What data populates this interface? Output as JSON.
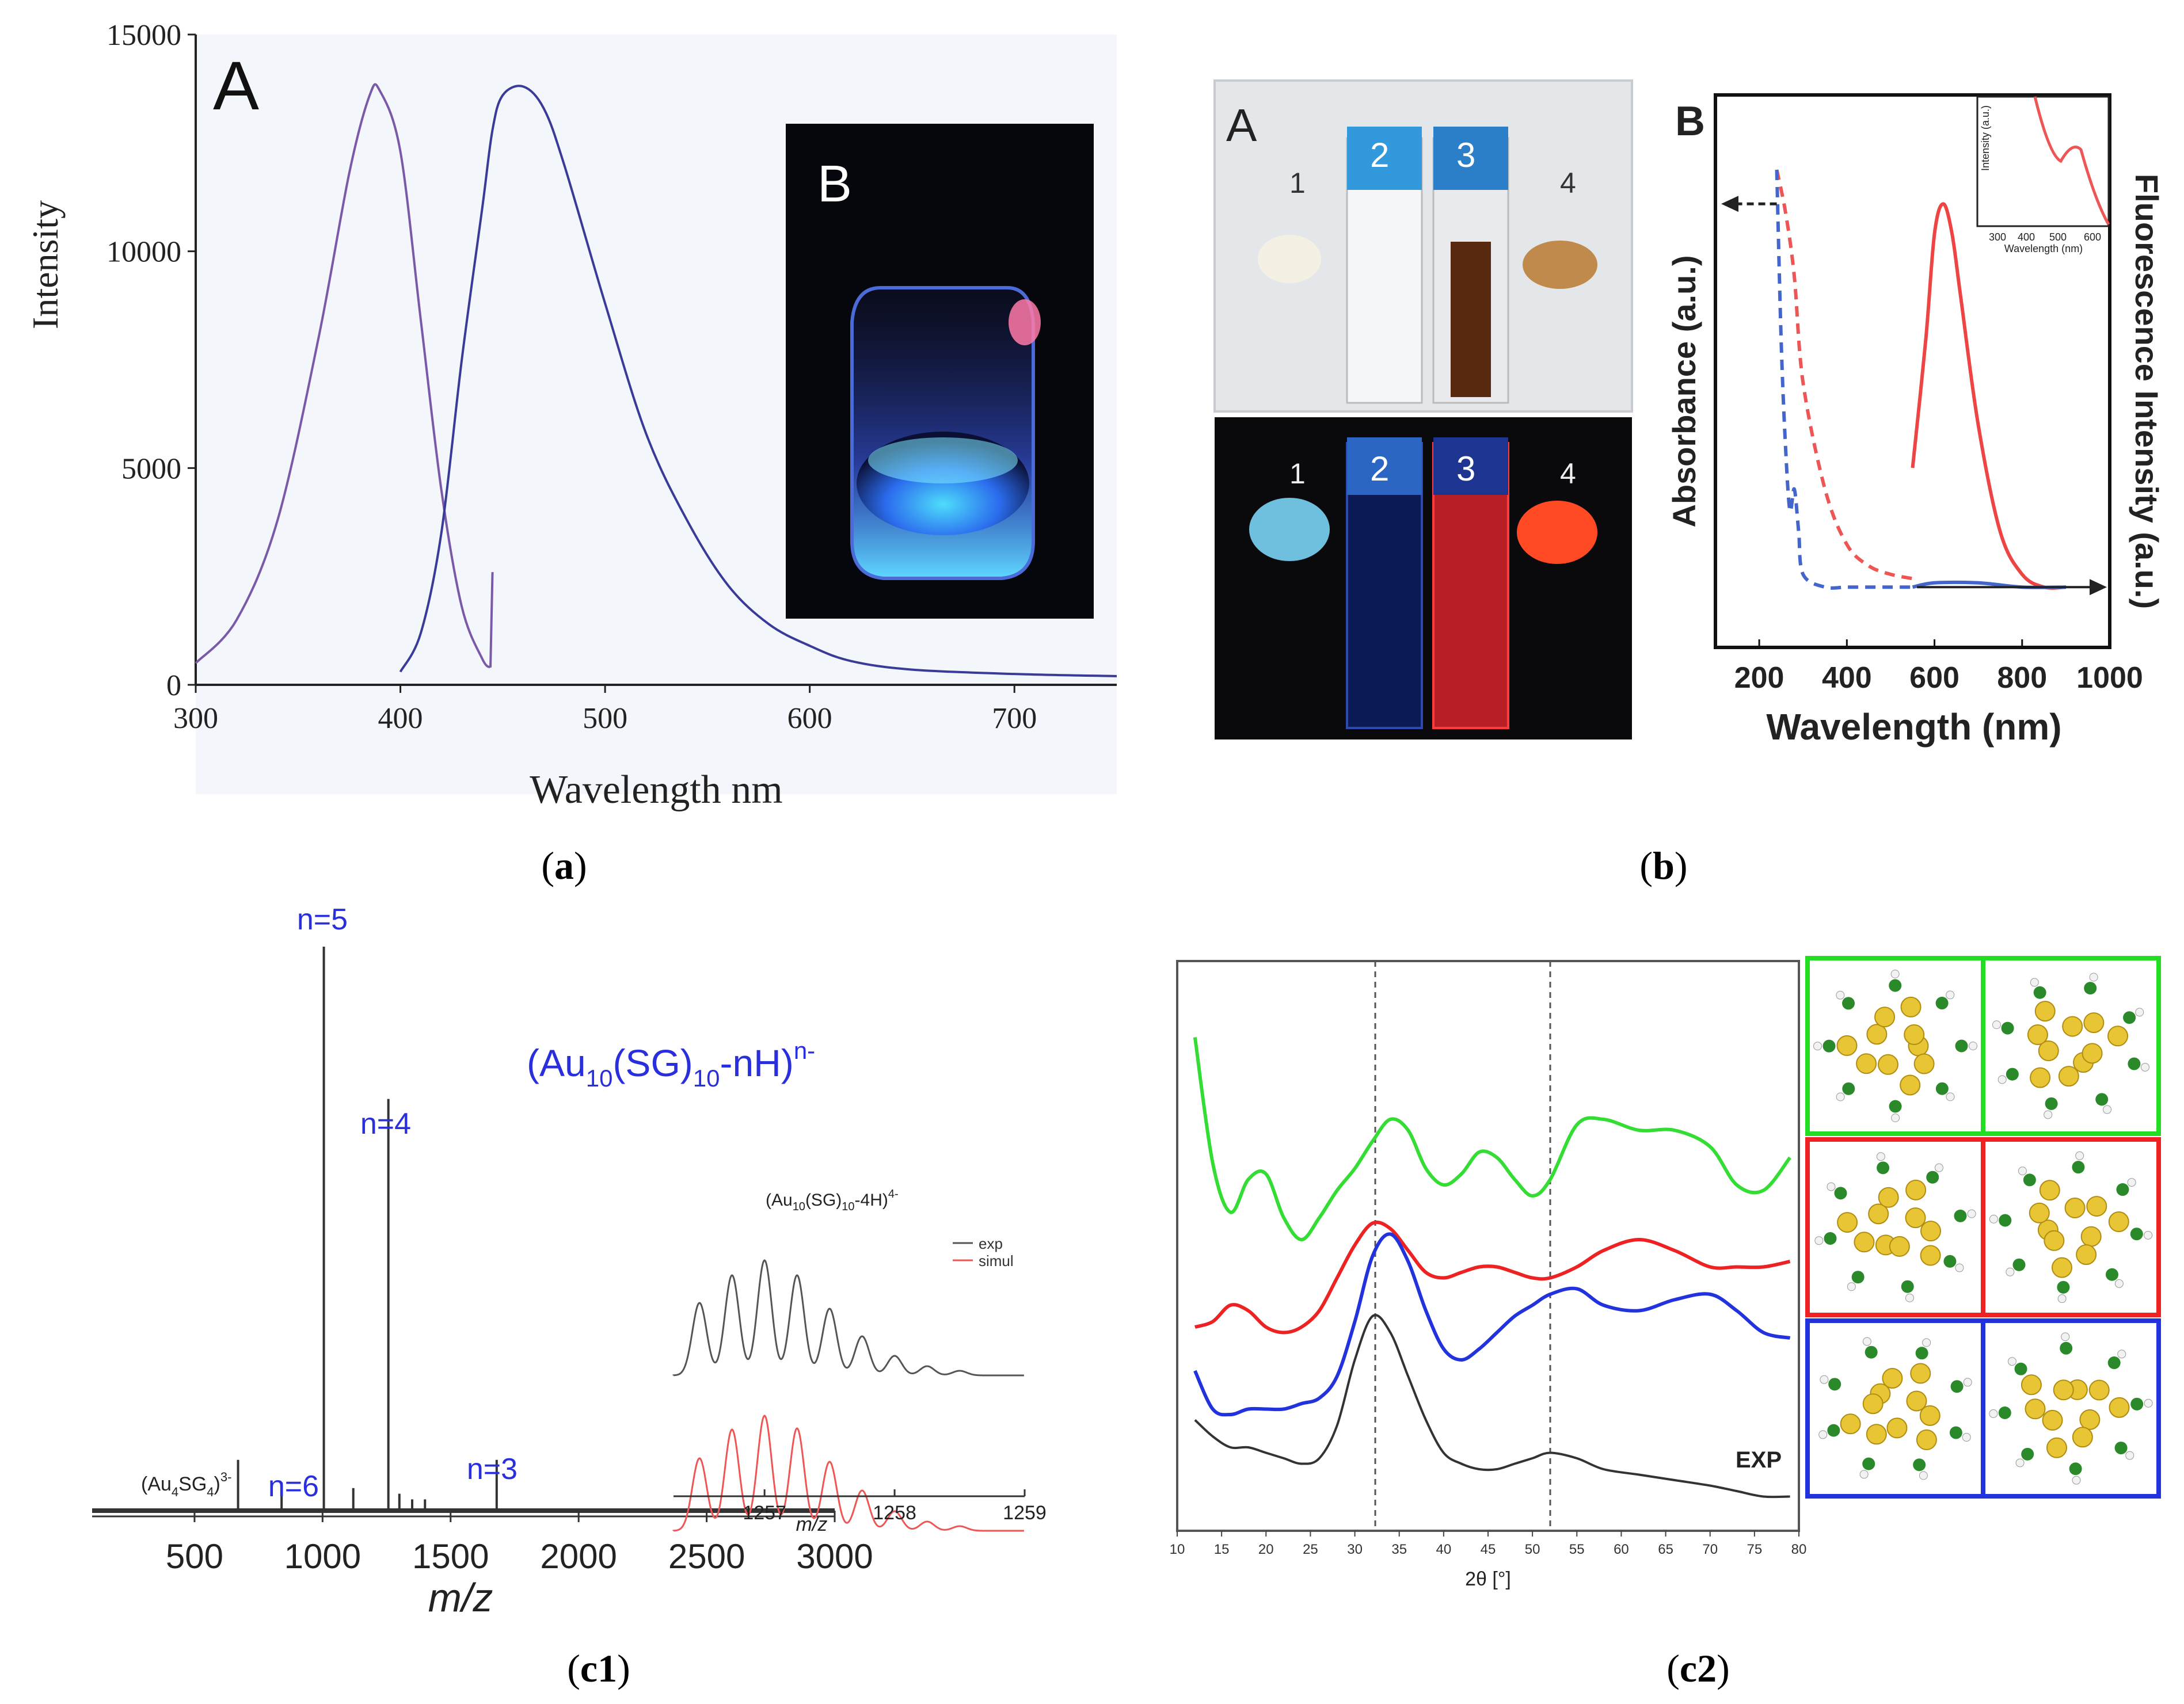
{
  "captions": {
    "a": {
      "open": "(",
      "tag": "a",
      "close": ")"
    },
    "b": {
      "open": "(",
      "tag": "b",
      "close": ")"
    },
    "c1": {
      "open": "(",
      "tag": "c1",
      "close": ")"
    },
    "c2": {
      "open": "(",
      "tag": "c2",
      "close": ")"
    }
  },
  "panel_a": {
    "panel_label": "A",
    "inset_label": "B",
    "xlabel": "Wavelength nm",
    "ylabel": "Intensity"
  },
  "panel_b": {
    "photo_label": "A",
    "vial_labels": [
      "1",
      "2",
      "3",
      "4"
    ],
    "chart_label": "B",
    "xlabel": "Wavelength (nm)",
    "ylabel_left": "Absorbance (a.u.)",
    "ylabel_right": "Fluorescence Intensity (a.u.)",
    "inset_ylabel": "Intensity (a.u.)",
    "inset_xlabel": "Wavelength (nm)",
    "inset_ticks": [
      "300",
      "400",
      "500",
      "600"
    ]
  },
  "panel_c1": {
    "formula": {
      "pre": "(Au",
      "sub1": "10",
      "mid": "(SG)",
      "sub2": "10",
      "post": "-nH)",
      "sup": "n-"
    },
    "peak_labels": [
      "n=5",
      "n=4",
      "n=6",
      "n=3"
    ],
    "fragment": {
      "pre": "(Au",
      "sub1": "4",
      "mid": "SG",
      "sub2": "4",
      "post": ")",
      "sup": "3-"
    },
    "inset_title": {
      "pre": "(Au",
      "sub1": "10",
      "mid": "(SG)",
      "sub2": "10",
      "post": "-4H)",
      "sup": "4-"
    },
    "legend": [
      "exp",
      "simul"
    ],
    "inset_xlabel": "m/z",
    "xlabel": "m/z"
  },
  "panel_c2": {
    "xlabel": "2θ [°]",
    "exp_label": "EXP",
    "structure_frames": [
      "#22dd22",
      "#ee2222",
      "#2233dd"
    ]
  },
  "chart_data": [
    {
      "type": "line",
      "title": "",
      "xlabel": "Wavelength nm",
      "ylabel": "Intensity",
      "xlim": [
        300,
        750
      ],
      "ylim": [
        0,
        15000
      ],
      "xticks": [
        300,
        400,
        500,
        600,
        700
      ],
      "yticks": [
        0,
        5000,
        10000,
        15000
      ],
      "series": [
        {
          "name": "excitation",
          "color": "#7a5aa8",
          "x": [
            300,
            320,
            340,
            360,
            375,
            385,
            390,
            400,
            410,
            420,
            430,
            440,
            444
          ],
          "y": [
            500,
            1500,
            3800,
            8000,
            11800,
            13600,
            13700,
            12300,
            8400,
            4500,
            1800,
            600,
            400
          ]
        },
        {
          "name": "emission",
          "color": "#3a3a98",
          "x": [
            400,
            410,
            420,
            430,
            440,
            445,
            450,
            460,
            470,
            480,
            500,
            520,
            540,
            560,
            580,
            600,
            620,
            650,
            700,
            750
          ],
          "y": [
            300,
            1200,
            3500,
            7500,
            11000,
            12800,
            13600,
            13800,
            13300,
            12000,
            8800,
            5800,
            3800,
            2300,
            1400,
            900,
            550,
            350,
            250,
            200
          ]
        },
        {
          "name": "excitation tail",
          "color": "#7a5aa8",
          "x": [
            444,
            445
          ],
          "y": [
            400,
            2600
          ]
        }
      ]
    },
    {
      "type": "line",
      "title": "",
      "xlabel": "Wavelength (nm)",
      "ylabel": "Absorbance (a.u.) / Fluorescence Intensity (a.u.)",
      "xlim": [
        100,
        1000
      ],
      "xticks": [
        200,
        400,
        600,
        800,
        1000
      ],
      "series": [
        {
          "name": "absorbance (red dashed)",
          "color": "#ee5555",
          "x": [
            240,
            260,
            280,
            300,
            350,
            400,
            450,
            500,
            550
          ],
          "y": [
            1.0,
            0.9,
            0.75,
            0.5,
            0.25,
            0.12,
            0.07,
            0.05,
            0.04
          ]
        },
        {
          "name": "absorbance (blue dashed)",
          "color": "#4466cc",
          "x": [
            240,
            250,
            260,
            270,
            280,
            290,
            300,
            350,
            400,
            450,
            500,
            550
          ],
          "y": [
            1.0,
            0.6,
            0.35,
            0.2,
            0.25,
            0.15,
            0.05,
            0.02,
            0.02,
            0.02,
            0.02,
            0.02
          ]
        },
        {
          "name": "fluorescence (red)",
          "color": "#ee4444",
          "x": [
            550,
            580,
            600,
            620,
            640,
            660,
            700,
            750,
            800,
            850,
            900
          ],
          "y": [
            0.3,
            0.6,
            0.85,
            0.92,
            0.85,
            0.7,
            0.4,
            0.15,
            0.05,
            0.02,
            0.02
          ]
        },
        {
          "name": "fluorescence (blue)",
          "color": "#4466cc",
          "x": [
            550,
            600,
            700,
            800,
            900
          ],
          "y": [
            0.02,
            0.03,
            0.03,
            0.02,
            0.02
          ]
        }
      ]
    },
    {
      "type": "bar",
      "title": "(Au10(SG)10-nH)n-",
      "xlabel": "m/z",
      "ylabel": "",
      "xlim": [
        100,
        3000
      ],
      "xticks": [
        500,
        1000,
        1500,
        2000,
        2500,
        3000
      ],
      "x": [
        670,
        840,
        1005,
        1120,
        1257,
        1680,
        1300,
        1350,
        1400
      ],
      "values": [
        0.09,
        0.05,
        1.0,
        0.04,
        0.73,
        0.09,
        0.03,
        0.02,
        0.02
      ],
      "annotations": [
        "(Au4SG4)3-",
        "n=6",
        "n=5",
        "",
        "n=4",
        "n=3",
        "",
        "",
        ""
      ]
    },
    {
      "type": "line",
      "title": "(Au10(SG)10-4H)4-",
      "xlabel": "m/z",
      "xlim": [
        1256.3,
        1259
      ],
      "xticks": [
        1257,
        1258,
        1259
      ],
      "series": [
        {
          "name": "exp",
          "color": "#555555",
          "x": [
            1256.5,
            1256.75,
            1257.0,
            1257.25,
            1257.5,
            1257.75,
            1258.0,
            1258.25,
            1258.5
          ],
          "y": [
            0.63,
            0.87,
            1.0,
            0.87,
            0.58,
            0.34,
            0.17,
            0.08,
            0.04
          ]
        },
        {
          "name": "simul",
          "color": "#ee5555",
          "x": [
            1256.5,
            1256.75,
            1257.0,
            1257.25,
            1257.5,
            1257.75,
            1258.0,
            1258.25,
            1258.5
          ],
          "y": [
            0.63,
            0.88,
            1.0,
            0.89,
            0.6,
            0.35,
            0.17,
            0.08,
            0.04
          ]
        }
      ]
    },
    {
      "type": "line",
      "title": "",
      "xlabel": "2θ [°]",
      "xlim": [
        10,
        80
      ],
      "xticks": [
        10,
        15,
        20,
        25,
        30,
        35,
        40,
        45,
        50,
        55,
        60,
        65,
        70,
        75,
        80
      ],
      "reference_lines": [
        32.3,
        52.0
      ],
      "series": [
        {
          "name": "green",
          "color": "#33dd33",
          "x": [
            12,
            14,
            16,
            18,
            20,
            22,
            24,
            26,
            28,
            30,
            32,
            34,
            36,
            38,
            40,
            42,
            44,
            46,
            48,
            50,
            52,
            55,
            58,
            62,
            66,
            70,
            73,
            76,
            79
          ],
          "y": [
            8.5,
            6.2,
            5.3,
            5.9,
            6.0,
            5.2,
            4.8,
            5.2,
            5.7,
            6.1,
            6.6,
            7.0,
            6.8,
            6.1,
            5.8,
            6.0,
            6.4,
            6.3,
            5.9,
            5.6,
            5.9,
            6.9,
            7.0,
            6.8,
            6.8,
            6.5,
            5.8,
            5.7,
            6.3
          ]
        },
        {
          "name": "red",
          "color": "#ee2222",
          "x": [
            12,
            14,
            16,
            18,
            20,
            22,
            24,
            26,
            28,
            30,
            32,
            34,
            36,
            38,
            40,
            42,
            44,
            46,
            48,
            50,
            52,
            55,
            58,
            62,
            66,
            70,
            73,
            76,
            79
          ],
          "y": [
            3.2,
            3.3,
            3.6,
            3.5,
            3.2,
            3.1,
            3.2,
            3.5,
            4.1,
            4.7,
            5.1,
            5.0,
            4.6,
            4.2,
            4.1,
            4.2,
            4.3,
            4.3,
            4.2,
            4.1,
            4.1,
            4.3,
            4.6,
            4.8,
            4.6,
            4.3,
            4.3,
            4.3,
            4.4
          ]
        },
        {
          "name": "blue",
          "color": "#2233dd",
          "x": [
            12,
            14,
            16,
            18,
            20,
            22,
            24,
            26,
            28,
            30,
            32,
            34,
            36,
            38,
            40,
            42,
            44,
            46,
            48,
            50,
            52,
            55,
            58,
            62,
            66,
            70,
            73,
            76,
            79
          ],
          "y": [
            2.4,
            1.7,
            1.6,
            1.7,
            1.7,
            1.7,
            1.8,
            1.9,
            2.3,
            3.3,
            4.5,
            4.9,
            4.4,
            3.5,
            2.8,
            2.6,
            2.8,
            3.1,
            3.4,
            3.6,
            3.8,
            3.9,
            3.6,
            3.5,
            3.7,
            3.8,
            3.5,
            3.1,
            3.0
          ]
        },
        {
          "name": "EXP",
          "color": "#333333",
          "x": [
            12,
            14,
            16,
            18,
            20,
            22,
            24,
            26,
            28,
            30,
            32,
            34,
            36,
            38,
            40,
            42,
            44,
            46,
            48,
            50,
            52,
            55,
            58,
            62,
            66,
            70,
            73,
            76,
            79
          ],
          "y": [
            1.5,
            1.2,
            1.0,
            1.0,
            0.9,
            0.8,
            0.7,
            0.8,
            1.4,
            2.6,
            3.4,
            3.1,
            2.3,
            1.5,
            0.9,
            0.7,
            0.6,
            0.6,
            0.7,
            0.8,
            0.9,
            0.8,
            0.6,
            0.5,
            0.4,
            0.3,
            0.2,
            0.1,
            0.1
          ]
        }
      ]
    }
  ]
}
